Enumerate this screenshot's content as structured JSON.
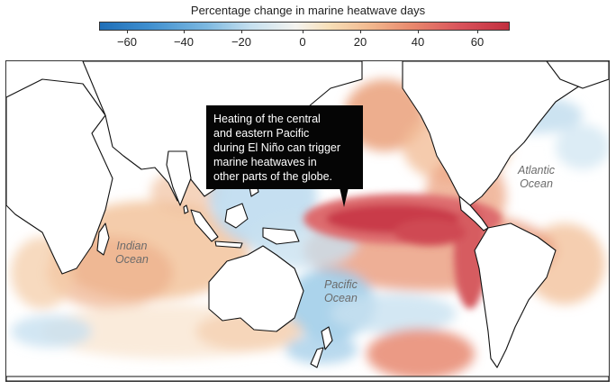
{
  "legend": {
    "title": "Percentage change in marine heatwave days",
    "ticks": [
      "−60",
      "−40",
      "−20",
      "0",
      "20",
      "40",
      "60"
    ],
    "tick_values": [
      -60,
      -40,
      -20,
      0,
      20,
      40,
      60
    ],
    "range": [
      -70,
      70
    ],
    "colors": {
      "strong_negative": "#1f6fb8",
      "neutral": "#f4f3ef",
      "strong_positive": "#c22f3f"
    }
  },
  "callout": {
    "lines": [
      "Heating of the central",
      "and eastern Pacific",
      "during El Niño can trigger",
      "marine heatwaves in",
      "other parts of the globe."
    ]
  },
  "oceans": {
    "indian": [
      "Indian",
      "Ocean"
    ],
    "pacific": [
      "Pacific",
      "Ocean"
    ],
    "atlantic": [
      "Atlantic",
      "Ocean"
    ]
  },
  "colors": {
    "land": "#ffffff",
    "coastline": "#111111"
  }
}
